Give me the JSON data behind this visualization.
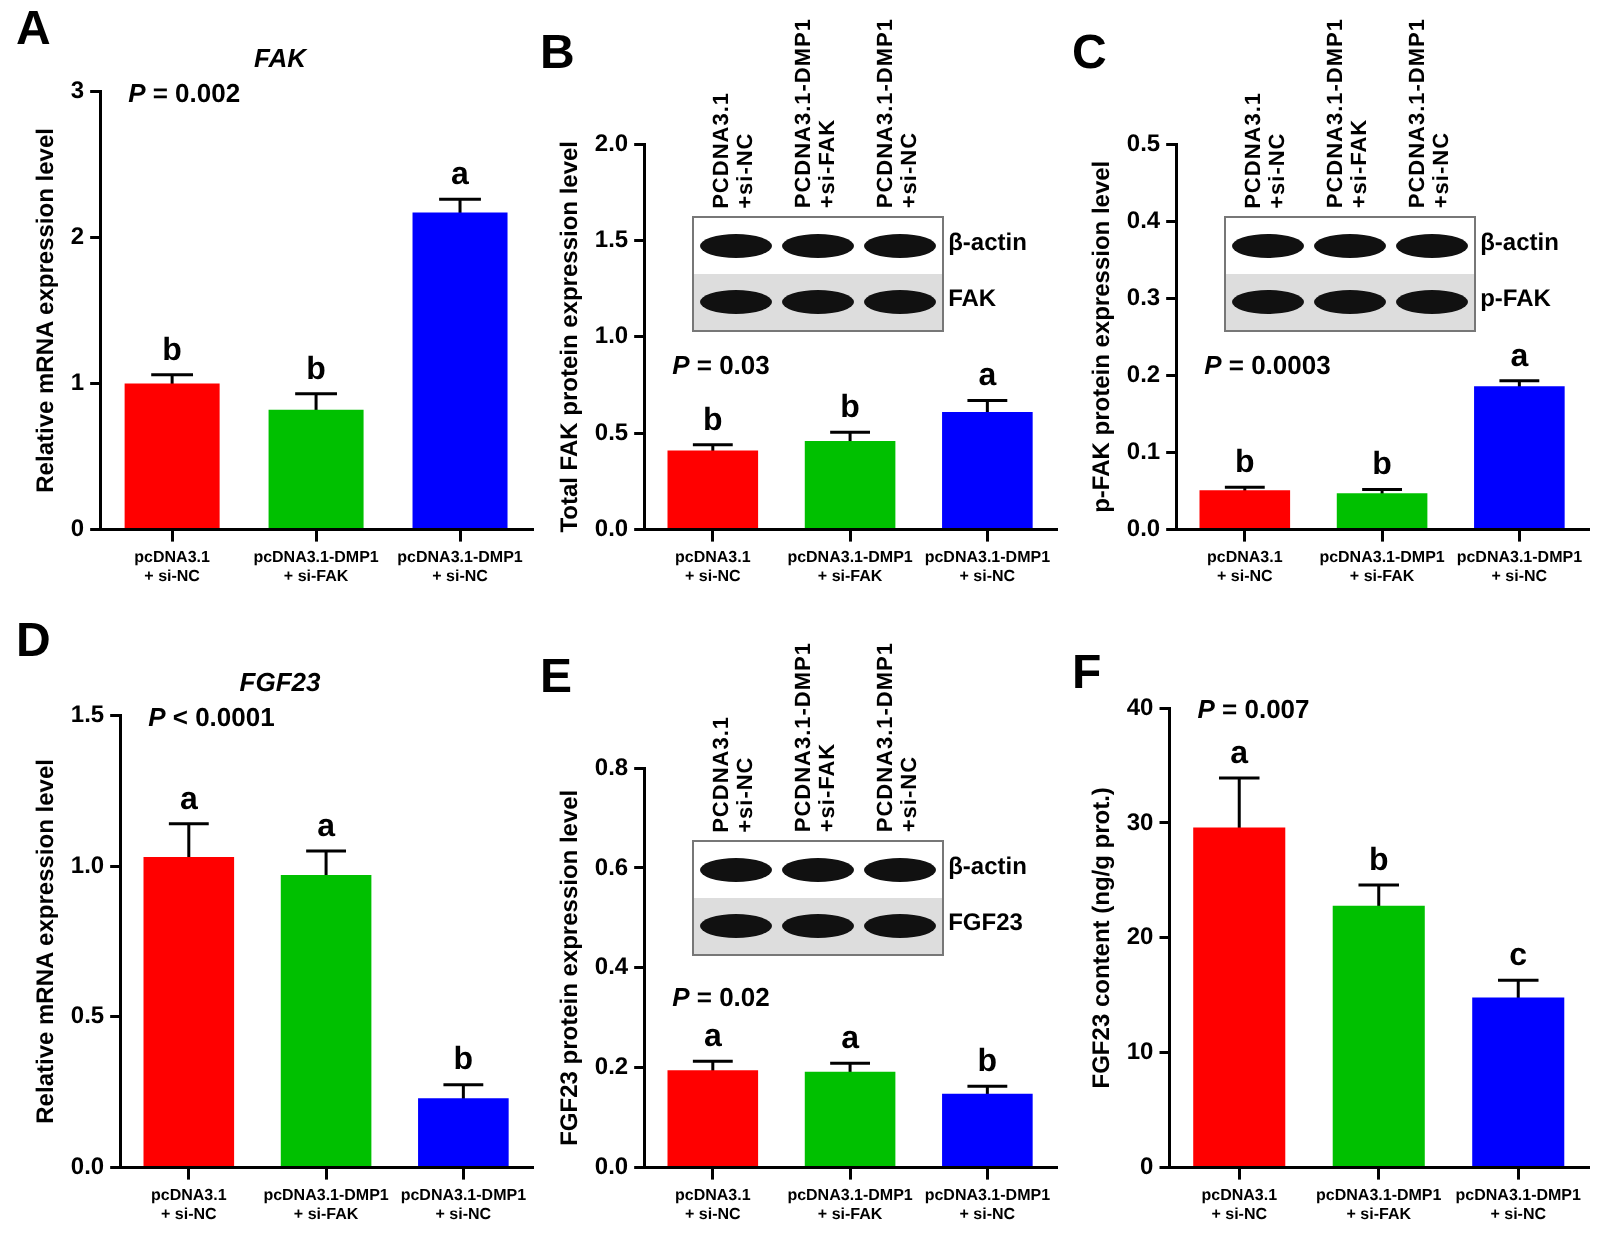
{
  "chart_data": [
    {
      "type": "bar",
      "title": "FAK",
      "ylabel": "Relative mRNA expression level",
      "categories": [
        "pcDNA3.1\n+ si-NC",
        "pcDNA3.1-DMP1\n+ si-FAK",
        "pcDNA3.1-DMP1\n+ si-NC"
      ],
      "values": [
        1.0,
        0.82,
        2.17
      ],
      "errors": [
        0.06,
        0.11,
        0.09
      ],
      "colors": [
        "#ff0000",
        "#00c000",
        "#0000ff"
      ],
      "ylim": [
        0,
        3
      ],
      "yticks": [
        0,
        1,
        2,
        3
      ],
      "annotations": [
        "A",
        "P = 0.002",
        {
          "text": "b",
          "x": "pcDNA3.1\n+ si-NC",
          "y": 1.06
        },
        {
          "text": "b",
          "x": "pcDNA3.1-DMP1\n+ si-FAK",
          "y": 0.93
        },
        {
          "text": "a",
          "x": "pcDNA3.1-DMP1\n+ si-NC",
          "y": 2.26
        }
      ]
    },
    {
      "type": "bar",
      "ylabel": "Total FAK protein expression level",
      "categories": [
        "pcDNA3.1\n+ si-NC",
        "pcDNA3.1-DMP1\n+ si-FAK",
        "pcDNA3.1-DMP1\n+ si-NC"
      ],
      "values": [
        0.41,
        0.46,
        0.61
      ],
      "errors": [
        0.03,
        0.045,
        0.06
      ],
      "colors": [
        "#ff0000",
        "#00c000",
        "#0000ff"
      ],
      "ylim": [
        0,
        2
      ],
      "yticks": [
        {
          "value": 0,
          "label": "0.0"
        },
        {
          "value": 0.5,
          "label": "0.5"
        },
        {
          "value": 1,
          "label": "1.0"
        },
        {
          "value": 1.5,
          "label": "1.5"
        },
        {
          "value": 2,
          "label": "2.0"
        }
      ],
      "annotations": [
        "B",
        "P = 0.03",
        "PCDNA3.1\n+si-NC",
        "PCDNA3.1-DMP1\n+si-FAK",
        "PCDNA3.1-DMP1\n+si-NC",
        "β-actin",
        "FAK",
        {
          "text": "b",
          "x": "pcDNA3.1\n+ si-NC",
          "y": 0.44
        },
        {
          "text": "b",
          "x": "pcDNA3.1-DMP1\n+ si-FAK",
          "y": 0.505
        },
        {
          "text": "a",
          "x": "pcDNA3.1-DMP1\n+ si-NC",
          "y": 0.67
        }
      ]
    },
    {
      "type": "bar",
      "ylabel": "p-FAK protein expression level",
      "categories": [
        "pcDNA3.1\n+ si-NC",
        "pcDNA3.1-DMP1\n+ si-FAK",
        "pcDNA3.1-DMP1\n+ si-NC"
      ],
      "values": [
        0.051,
        0.047,
        0.186
      ],
      "errors": [
        0.004,
        0.005,
        0.007
      ],
      "colors": [
        "#ff0000",
        "#00c000",
        "#0000ff"
      ],
      "ylim": [
        0,
        0.5
      ],
      "yticks": [
        {
          "value": 0,
          "label": "0.0"
        },
        0.1,
        0.2,
        0.3,
        0.4,
        0.5
      ],
      "annotations": [
        "C",
        "P = 0.0003",
        "PCDNA3.1\n+si-NC",
        "PCDNA3.1-DMP1\n+si-FAK",
        "PCDNA3.1-DMP1\n+si-NC",
        "β-actin",
        "p-FAK",
        {
          "text": "b",
          "x": "pcDNA3.1\n+ si-NC",
          "y": 0.055
        },
        {
          "text": "b",
          "x": "pcDNA3.1-DMP1\n+ si-FAK",
          "y": 0.052
        },
        {
          "text": "a",
          "x": "pcDNA3.1-DMP1\n+ si-NC",
          "y": 0.193
        }
      ]
    },
    {
      "type": "bar",
      "title": "FGF23",
      "ylabel": "Relative mRNA expression level",
      "categories": [
        "pcDNA3.1\n+ si-NC",
        "pcDNA3.1-DMP1\n+ si-FAK",
        "pcDNA3.1-DMP1\n+ si-NC"
      ],
      "values": [
        1.03,
        0.97,
        0.23
      ],
      "errors": [
        0.11,
        0.08,
        0.045
      ],
      "colors": [
        "#ff0000",
        "#00c000",
        "#0000ff"
      ],
      "ylim": [
        0,
        1.5
      ],
      "yticks": [
        {
          "value": 0,
          "label": "0.0"
        },
        {
          "value": 0.5,
          "label": "0.5"
        },
        {
          "value": 1,
          "label": "1.0"
        },
        {
          "value": 1.5,
          "label": "1.5"
        }
      ],
      "annotations": [
        "D",
        "P < 0.0001",
        {
          "text": "a",
          "x": "pcDNA3.1\n+ si-NC",
          "y": 1.14
        },
        {
          "text": "a",
          "x": "pcDNA3.1-DMP1\n+ si-FAK",
          "y": 1.05
        },
        {
          "text": "b",
          "x": "pcDNA3.1-DMP1\n+ si-NC",
          "y": 0.275
        }
      ]
    },
    {
      "type": "bar",
      "ylabel": "FGF23 protein expression level",
      "categories": [
        "pcDNA3.1\n+ si-NC",
        "pcDNA3.1-DMP1\n+ si-FAK",
        "pcDNA3.1-DMP1\n+ si-NC"
      ],
      "values": [
        0.195,
        0.192,
        0.148
      ],
      "errors": [
        0.018,
        0.017,
        0.015
      ],
      "colors": [
        "#ff0000",
        "#00c000",
        "#0000ff"
      ],
      "ylim": [
        0,
        0.8
      ],
      "yticks": [
        {
          "value": 0,
          "label": "0.0"
        },
        0.2,
        0.4,
        0.6,
        0.8
      ],
      "annotations": [
        "E",
        "P = 0.02",
        "PCDNA3.1\n+si-NC",
        "PCDNA3.1-DMP1\n+si-FAK",
        "PCDNA3.1-DMP1\n+si-NC",
        "β-actin",
        "FGF23",
        {
          "text": "a",
          "x": "pcDNA3.1\n+ si-NC",
          "y": 0.213
        },
        {
          "text": "a",
          "x": "pcDNA3.1-DMP1\n+ si-FAK",
          "y": 0.209
        },
        {
          "text": "b",
          "x": "pcDNA3.1-DMP1\n+ si-NC",
          "y": 0.163
        }
      ]
    },
    {
      "type": "bar",
      "ylabel": "FGF23 content (ng/g prot.)",
      "categories": [
        "pcDNA3.1\n+ si-NC",
        "pcDNA3.1-DMP1\n+ si-FAK",
        "pcDNA3.1-DMP1\n+ si-NC"
      ],
      "values": [
        29.6,
        22.8,
        14.8
      ],
      "errors": [
        4.3,
        1.8,
        1.5
      ],
      "colors": [
        "#ff0000",
        "#00c000",
        "#0000ff"
      ],
      "ylim": [
        0,
        40
      ],
      "yticks": [
        0,
        10,
        20,
        30,
        40
      ],
      "annotations": [
        "F",
        "P = 0.007",
        {
          "text": "a",
          "x": "pcDNA3.1\n+ si-NC",
          "y": 33.9
        },
        {
          "text": "b",
          "x": "pcDNA3.1-DMP1\n+ si-FAK",
          "y": 24.6
        },
        {
          "text": "c",
          "x": "pcDNA3.1-DMP1\n+ si-NC",
          "y": 16.3
        }
      ]
    }
  ]
}
